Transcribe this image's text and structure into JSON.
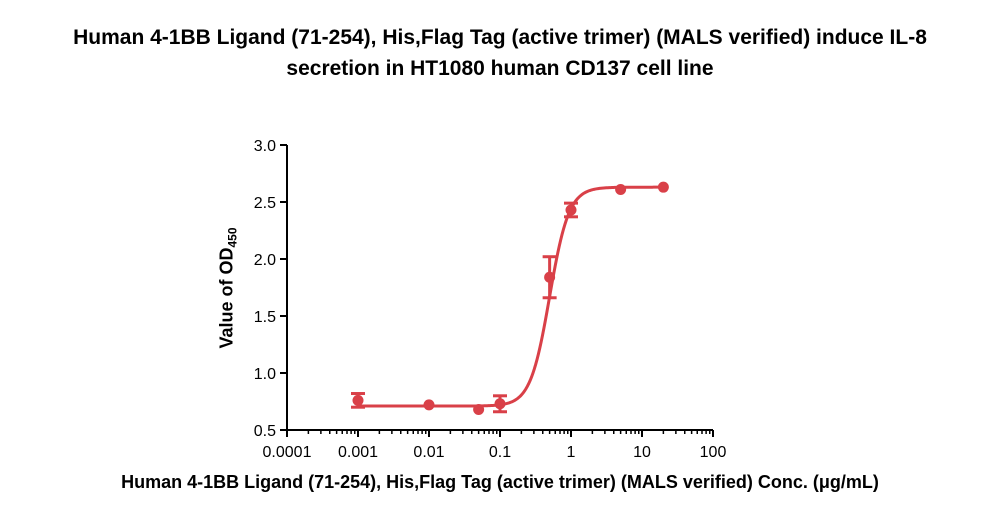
{
  "chart_data": {
    "type": "scatter",
    "title": [
      "Human 4-1BB Ligand (71-254), His,Flag Tag (active trimer) (MALS verified) induce IL-8",
      "secretion in HT1080 human CD137 cell line"
    ],
    "xlabel": "Human 4-1BB Ligand (71-254), His,Flag Tag (active trimer) (MALS verified) Conc. (μg/mL)",
    "ylabel": {
      "main": "Value of OD",
      "sub": "450"
    },
    "x_scale": "log",
    "xlim": [
      0.0001,
      100
    ],
    "ylim": [
      0.5,
      3.0
    ],
    "x_ticks": [
      "0.0001",
      "0.001",
      "0.01",
      "0.1",
      "1",
      "10",
      "100"
    ],
    "y_ticks": [
      "0.5",
      "1.0",
      "1.5",
      "2.0",
      "2.5",
      "3.0"
    ],
    "color": "#d94048",
    "series": [
      {
        "points": [
          {
            "x": 0.001,
            "y": 0.76,
            "err": 0.06
          },
          {
            "x": 0.01,
            "y": 0.72,
            "err": 0.0
          },
          {
            "x": 0.05,
            "y": 0.68,
            "err": 0.0
          },
          {
            "x": 0.1,
            "y": 0.73,
            "err": 0.07
          },
          {
            "x": 0.5,
            "y": 1.84,
            "err": 0.18
          },
          {
            "x": 1,
            "y": 2.43,
            "err": 0.06
          },
          {
            "x": 5,
            "y": 2.61,
            "err": 0.0
          },
          {
            "x": 20,
            "y": 2.63,
            "err": 0.0
          }
        ],
        "fit": {
          "bottom": 0.71,
          "top": 2.63,
          "ec50": 0.5,
          "hill": 3.2
        }
      }
    ],
    "grid": false,
    "legend": "none"
  }
}
